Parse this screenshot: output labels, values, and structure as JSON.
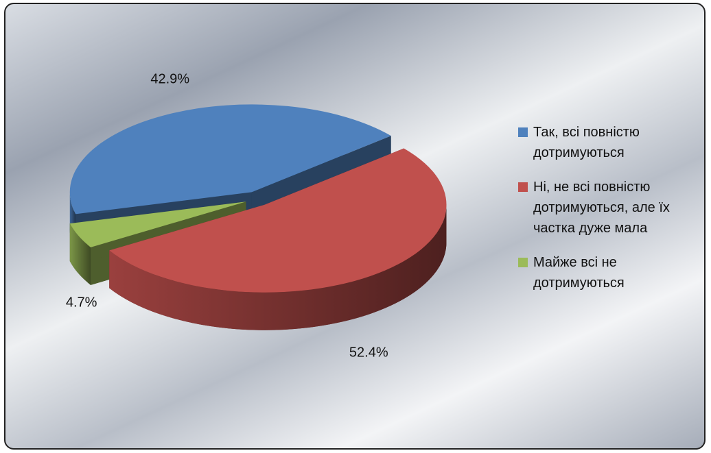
{
  "chart_data": {
    "type": "pie",
    "categories": [
      "Так, всі повністю дотримуються",
      "Ні, не всі повністю дотримуються, але їх частка дуже мала",
      "Майже всі не дотримуються"
    ],
    "values": [
      42.9,
      52.4,
      4.7
    ],
    "value_labels": [
      "42.9%",
      "52.4%",
      "4.7%"
    ],
    "colors": [
      "#4f81bd",
      "#c0504d",
      "#9bbb59"
    ],
    "legend": "right"
  }
}
